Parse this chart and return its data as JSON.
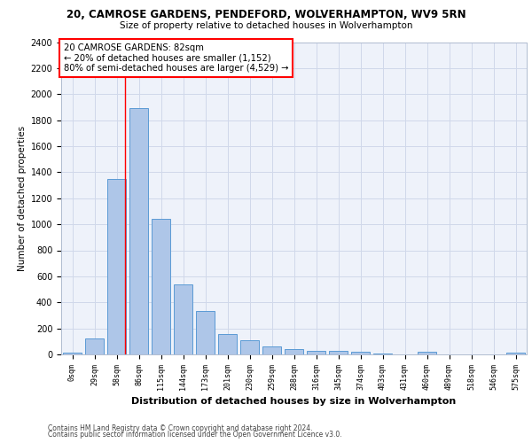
{
  "title_line1": "20, CAMROSE GARDENS, PENDEFORD, WOLVERHAMPTON, WV9 5RN",
  "title_line2": "Size of property relative to detached houses in Wolverhampton",
  "xlabel": "Distribution of detached houses by size in Wolverhampton",
  "ylabel": "Number of detached properties",
  "footnote1": "Contains HM Land Registry data © Crown copyright and database right 2024.",
  "footnote2": "Contains public sector information licensed under the Open Government Licence v3.0.",
  "bar_labels": [
    "0sqm",
    "29sqm",
    "58sqm",
    "86sqm",
    "115sqm",
    "144sqm",
    "173sqm",
    "201sqm",
    "230sqm",
    "259sqm",
    "288sqm",
    "316sqm",
    "345sqm",
    "374sqm",
    "403sqm",
    "431sqm",
    "460sqm",
    "489sqm",
    "518sqm",
    "546sqm",
    "575sqm"
  ],
  "bar_values": [
    15,
    125,
    1345,
    1895,
    1045,
    540,
    335,
    160,
    110,
    60,
    40,
    30,
    25,
    20,
    10,
    0,
    20,
    0,
    0,
    0,
    15
  ],
  "bar_color": "#aec6e8",
  "bar_edge_color": "#5b9bd5",
  "ylim": [
    0,
    2400
  ],
  "yticks": [
    0,
    200,
    400,
    600,
    800,
    1000,
    1200,
    1400,
    1600,
    1800,
    2000,
    2200,
    2400
  ],
  "property_line_color": "red",
  "annotation_text": "20 CAMROSE GARDENS: 82sqm\n← 20% of detached houses are smaller (1,152)\n80% of semi-detached houses are larger (4,529) →",
  "annotation_box_color": "red",
  "bg_color": "#eef2fa",
  "grid_color": "#d0d8ea"
}
